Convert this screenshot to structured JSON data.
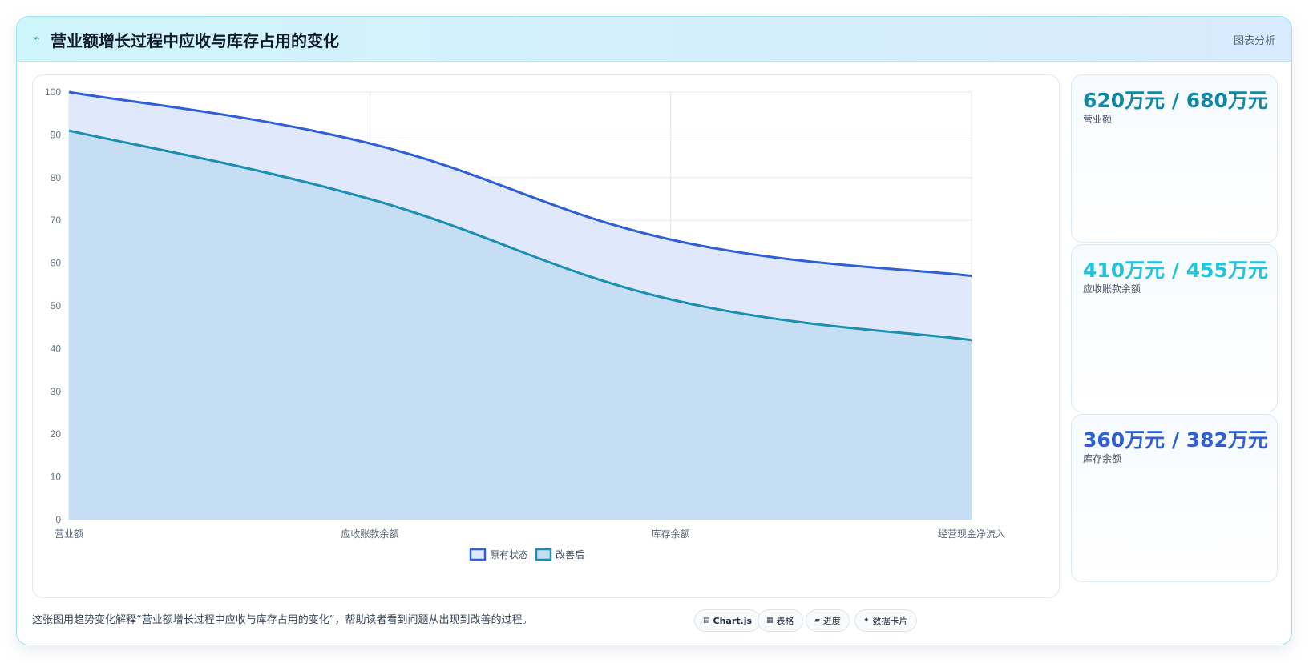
{
  "header": {
    "icon": "chart-trend-icon",
    "title": "营业额增长过程中应收与库存占用的变化",
    "right_label": "图表分析"
  },
  "chart_data": {
    "type": "area",
    "categories": [
      "营业额",
      "应收账款余额",
      "库存余额",
      "经营现金净流入"
    ],
    "series": [
      {
        "name": "原有状态",
        "values": [
          100,
          88,
          65.5,
          57
        ],
        "color": "#2f5fd6",
        "fill": "#dfe9fb"
      },
      {
        "name": "改善后",
        "values": [
          91,
          75,
          51.5,
          42
        ],
        "color": "#1a8fb2",
        "fill": "#c4ddf2"
      }
    ],
    "ylim": [
      0,
      100
    ],
    "yticks": [
      0,
      10,
      20,
      30,
      40,
      50,
      60,
      70,
      80,
      90,
      100
    ],
    "grid": true,
    "legend_position": "bottom"
  },
  "stats": [
    {
      "value": "620万元 / 680万元",
      "label": "营业额",
      "color": "#1188a6"
    },
    {
      "value": "410万元 / 455万元",
      "label": "应收账款余额",
      "color": "#22c3dd"
    },
    {
      "value": "360万元 / 382万元",
      "label": "库存余额",
      "color": "#2f5fd6"
    }
  ],
  "footer": {
    "note": "这张图用趋势变化解释“营业额增长过程中应收与库存占用的变化”，帮助读者看到问题从出现到改善的过程。",
    "buttons": [
      {
        "label": "Chart.js",
        "icon": "chart-icon"
      },
      {
        "label": "表格",
        "icon": "table-icon"
      },
      {
        "label": "进度",
        "icon": "progress-icon"
      },
      {
        "label": "数据卡片",
        "icon": "sparkle-icon"
      }
    ]
  }
}
